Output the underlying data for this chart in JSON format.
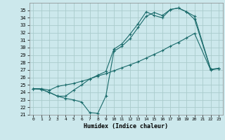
{
  "xlabel": "Humidex (Indice chaleur)",
  "bg_color": "#cce8ec",
  "grid_color": "#aacccc",
  "line_color": "#1a6b6b",
  "xlim": [
    -0.5,
    23.5
  ],
  "ylim": [
    21,
    36
  ],
  "xticks": [
    0,
    1,
    2,
    3,
    4,
    5,
    6,
    7,
    8,
    9,
    10,
    11,
    12,
    13,
    14,
    15,
    16,
    17,
    18,
    19,
    20,
    21,
    22,
    23
  ],
  "yticks": [
    21,
    22,
    23,
    24,
    25,
    26,
    27,
    28,
    29,
    30,
    31,
    32,
    33,
    34,
    35
  ],
  "line1_x": [
    0,
    1,
    2,
    3,
    4,
    5,
    6,
    7,
    8,
    9,
    10,
    11,
    12,
    13,
    14,
    15,
    16,
    17,
    18,
    19,
    20,
    22,
    23
  ],
  "line1_y": [
    24.5,
    24.5,
    24.3,
    24.8,
    25.0,
    25.2,
    25.5,
    25.8,
    26.2,
    26.5,
    26.9,
    27.3,
    27.7,
    28.1,
    28.6,
    29.1,
    29.6,
    30.2,
    30.7,
    31.3,
    31.9,
    27.0,
    27.2
  ],
  "line2_x": [
    0,
    1,
    2,
    3,
    4,
    5,
    6,
    7,
    8,
    9,
    10,
    11,
    12,
    13,
    14,
    15,
    16,
    17,
    18,
    19,
    20,
    22,
    23
  ],
  "line2_y": [
    24.5,
    24.4,
    24.0,
    23.5,
    23.2,
    23.0,
    22.7,
    21.3,
    21.2,
    23.5,
    29.5,
    30.2,
    31.2,
    32.7,
    34.2,
    34.7,
    34.3,
    35.1,
    35.3,
    34.8,
    33.8,
    27.1,
    27.2
  ],
  "line3_x": [
    0,
    1,
    2,
    3,
    4,
    5,
    6,
    7,
    8,
    9,
    10,
    11,
    12,
    13,
    14,
    15,
    16,
    17,
    18,
    19,
    20,
    22,
    23
  ],
  "line3_y": [
    24.5,
    24.4,
    24.0,
    23.5,
    23.5,
    24.3,
    25.0,
    25.8,
    26.3,
    26.8,
    29.8,
    30.5,
    31.8,
    33.2,
    34.8,
    34.3,
    34.0,
    35.1,
    35.3,
    34.8,
    34.2,
    27.1,
    27.2
  ]
}
